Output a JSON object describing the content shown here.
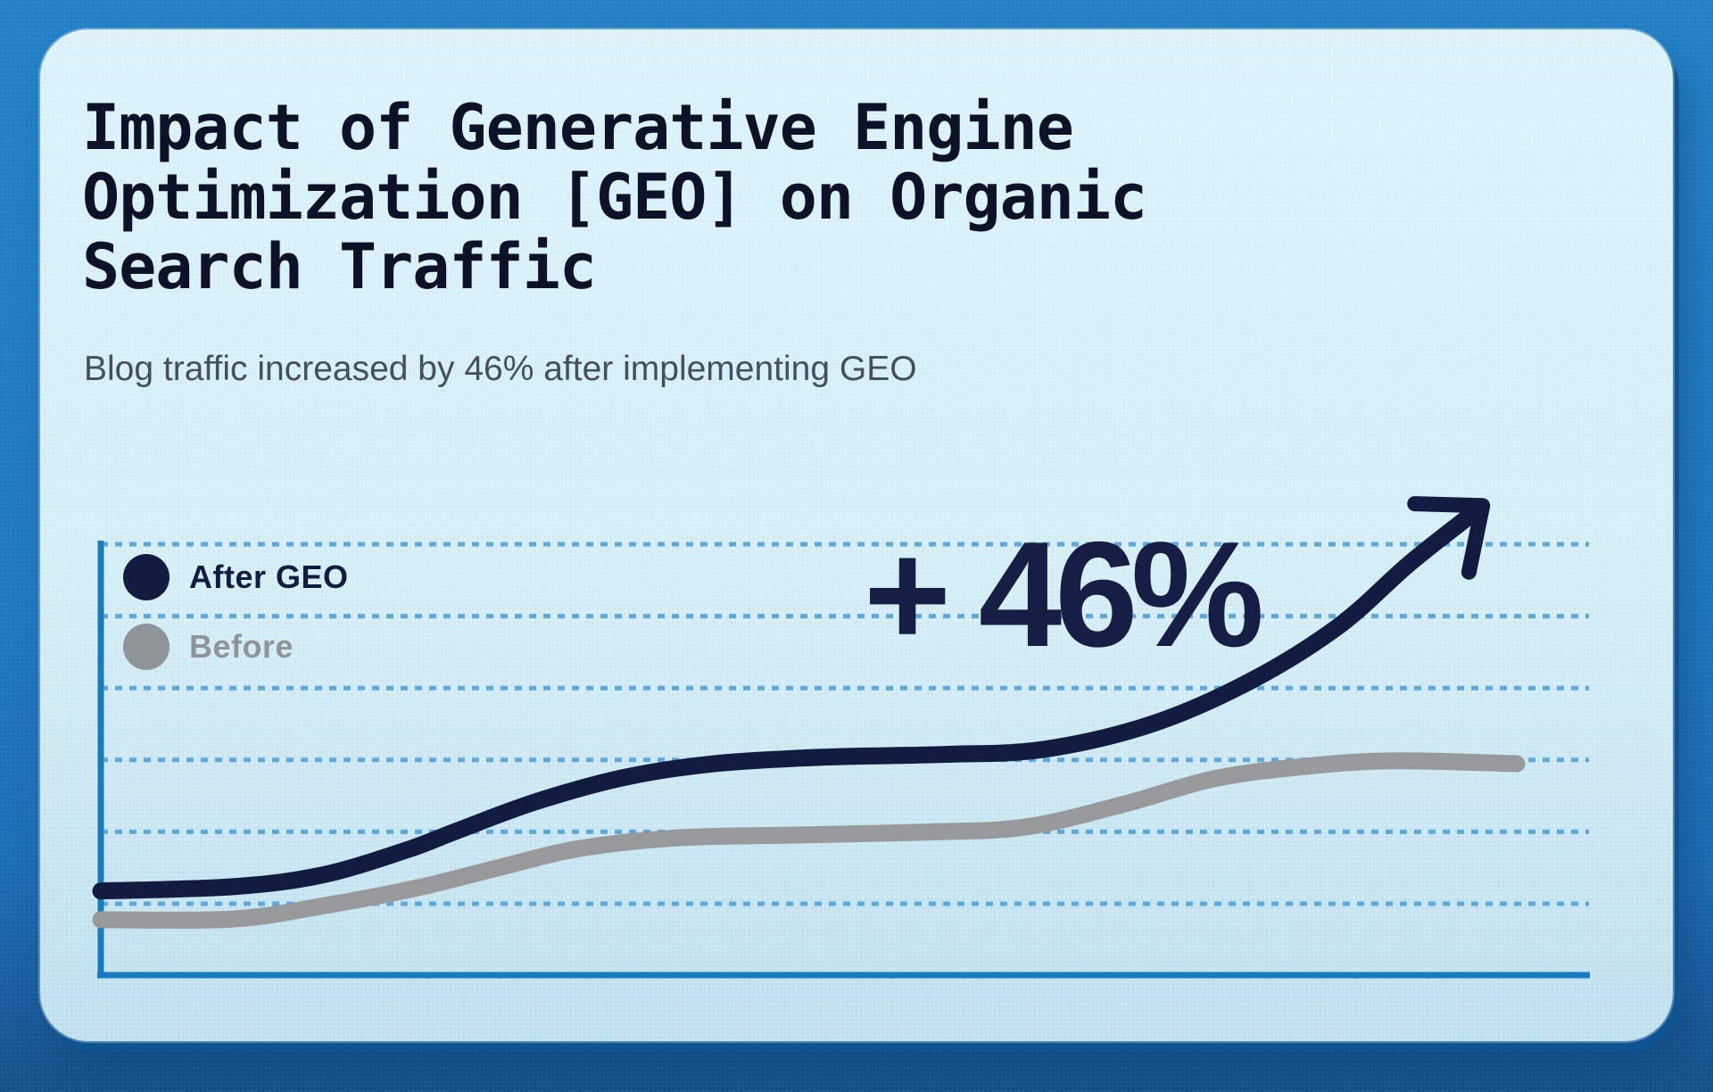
{
  "title": {
    "line1": "Impact of Generative Engine",
    "line2": "Optimization [GEO] on Organic",
    "line3": "Search Traffic"
  },
  "subtitle": "Blog traffic increased by 46% after implementing GEO",
  "annotation": {
    "text": "+ 46%"
  },
  "legend": {
    "items": [
      {
        "label": "After GEO",
        "color": "#121c40"
      },
      {
        "label": "Before",
        "color": "#8f9499"
      }
    ]
  },
  "colors": {
    "accent_axis": "#187abf",
    "gridline": "#5ea8dc",
    "after_line": "#121c40",
    "before_line": "#97999b",
    "title_text": "#0e1228",
    "subtitle_text": "#44505c",
    "annotation_text": "#161e46",
    "card_background": "#d5eef5",
    "frame_background": "#1f78c0"
  },
  "chart_data": {
    "type": "line",
    "title": "Impact of Generative Engine Optimization [GEO] on Organic Search Traffic",
    "subtitle": "Blog traffic increased by 46% after implementing GEO",
    "annotation": "+ 46%",
    "xlabel": "",
    "ylabel": "",
    "axis_tick_labels_visible": false,
    "legend_position": "top-left inside plot",
    "grid": {
      "visible": true,
      "style": "dashed",
      "count": 6
    },
    "value_unit": "relative organic-traffic index (axes unlabeled)",
    "ylim": [
      0,
      70
    ],
    "series": [
      {
        "name": "After GEO",
        "color": "#121c40",
        "end_marker": "arrow",
        "points": [
          [
            0.0,
            11.7
          ],
          [
            0.093,
            12.3
          ],
          [
            0.156,
            13.9
          ],
          [
            0.216,
            17.4
          ],
          [
            0.252,
            20.1
          ],
          [
            0.307,
            24.1
          ],
          [
            0.37,
            27.5
          ],
          [
            0.433,
            29.4
          ],
          [
            0.509,
            30.3
          ],
          [
            0.597,
            30.7
          ],
          [
            0.666,
            31.4
          ],
          [
            0.742,
            34.9
          ],
          [
            0.811,
            40.8
          ],
          [
            0.874,
            48.5
          ],
          [
            0.924,
            57.2
          ],
          [
            0.967,
            63.9
          ]
        ]
      },
      {
        "name": "Before",
        "color": "#97999b",
        "end_marker": "round",
        "points": [
          [
            0.0,
            7.7
          ],
          [
            0.093,
            7.8
          ],
          [
            0.156,
            9.6
          ],
          [
            0.225,
            12.2
          ],
          [
            0.282,
            15.0
          ],
          [
            0.338,
            17.6
          ],
          [
            0.408,
            19.1
          ],
          [
            0.496,
            19.5
          ],
          [
            0.584,
            19.9
          ],
          [
            0.653,
            20.6
          ],
          [
            0.723,
            23.8
          ],
          [
            0.786,
            27.3
          ],
          [
            0.849,
            29.0
          ],
          [
            0.912,
            29.8
          ],
          [
            1.0,
            29.4
          ]
        ]
      }
    ]
  }
}
